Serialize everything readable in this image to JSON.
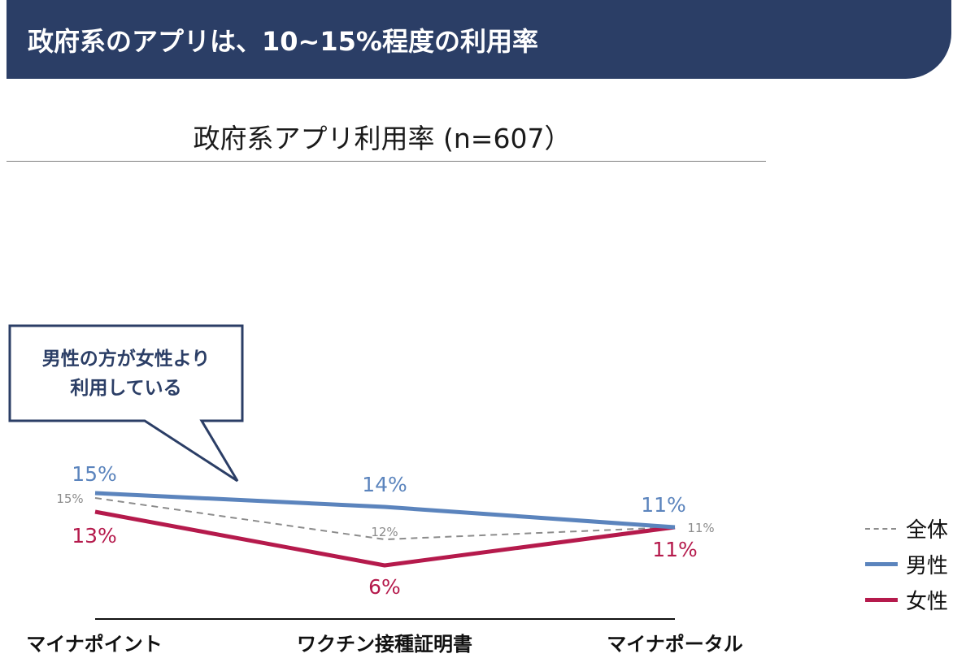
{
  "header": {
    "title": "政府系のアプリは、10~15%程度の利用率"
  },
  "callout": {
    "line1": "男性の方が女性より",
    "line2": "利用している"
  },
  "legend": {
    "overall": "全体",
    "male": "男性",
    "female": "女性"
  },
  "chart_data": {
    "type": "line",
    "title": "政府系アプリ利用率 (n=607）",
    "categories": [
      "マイナポイント",
      "ワクチン接種証明書",
      "マイナポータル"
    ],
    "unit": "%",
    "ylim": [
      0,
      20
    ],
    "series": [
      {
        "key": "overall",
        "name": "全体",
        "values": [
          15,
          12,
          11
        ],
        "labels": [
          "15%",
          "12%",
          "11%"
        ],
        "color": "#8c8c8c",
        "style": "dashed"
      },
      {
        "key": "male",
        "name": "男性",
        "values": [
          15,
          14,
          11
        ],
        "labels": [
          "15%",
          "14%",
          "11%"
        ],
        "color": "#5b84bd",
        "style": "solid"
      },
      {
        "key": "female",
        "name": "女性",
        "values": [
          13,
          6,
          11
        ],
        "labels": [
          "13%",
          "6%",
          "11%"
        ],
        "color": "#b51a4c",
        "style": "solid"
      }
    ]
  }
}
